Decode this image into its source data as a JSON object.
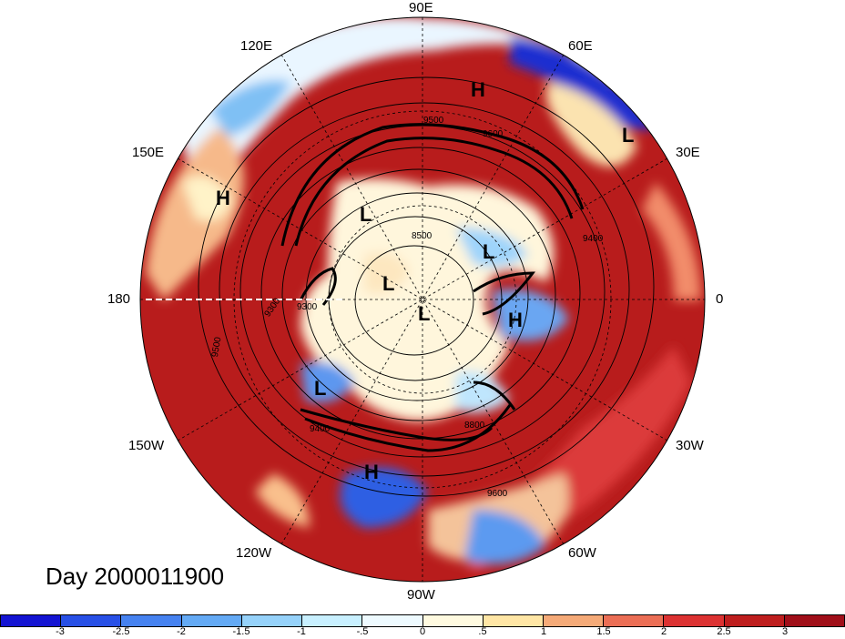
{
  "title": "Day 2000011900",
  "longitude_labels": {
    "lon_90E": "90E",
    "lon_60E": "60E",
    "lon_30E": "30E",
    "lon_0": "0",
    "lon_30W": "30W",
    "lon_60W": "60W",
    "lon_90W": "90W",
    "lon_120W": "120W",
    "lon_150W": "150W",
    "lon_180": "180",
    "lon_150E": "150E",
    "lon_120E": "120E"
  },
  "pressure_systems": [
    {
      "label": "H"
    },
    {
      "label": "L"
    },
    {
      "label": "H"
    },
    {
      "label": "L"
    },
    {
      "label": "L"
    },
    {
      "label": "L"
    },
    {
      "label": "L"
    },
    {
      "label": "H"
    },
    {
      "label": "L"
    },
    {
      "label": "H"
    }
  ],
  "contour_labels": [
    "9500",
    "9600",
    "9400",
    "9300",
    "8500",
    "9300",
    "9500",
    "9400",
    "8800",
    "9600"
  ],
  "colorbar": {
    "colors": [
      "#1414d2",
      "#2850e6",
      "#4682f0",
      "#64aaf5",
      "#96d2fa",
      "#c8f0ff",
      "#eefaff",
      "#fffae0",
      "#ffe6a5",
      "#f5aa78",
      "#eb6e55",
      "#dc3232",
      "#be1e1e",
      "#a00f19"
    ],
    "tick_labels": [
      "-3",
      "-2.5",
      "-2",
      "-1.5",
      "-1",
      "-.5",
      "0",
      ".5",
      "1",
      "1.5",
      "2",
      "2.5",
      "3"
    ]
  }
}
